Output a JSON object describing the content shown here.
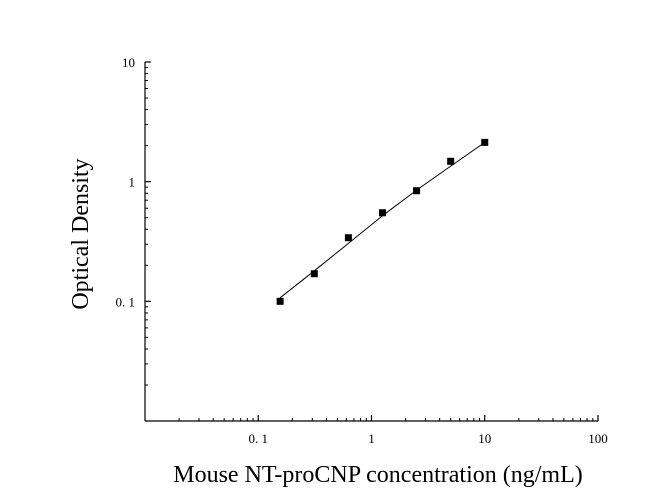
{
  "chart_data": {
    "type": "scatter",
    "title": "",
    "xlabel": "Mouse NT-proCNP concentration (ng/mL)",
    "ylabel": "Optical Density",
    "x_scale": "log",
    "y_scale": "log",
    "xlim": [
      0.01,
      100
    ],
    "ylim": [
      0.01,
      10
    ],
    "x_ticks": [
      {
        "value": 0.1,
        "label": "0. 1"
      },
      {
        "value": 1,
        "label": "1"
      },
      {
        "value": 10,
        "label": "10"
      },
      {
        "value": 100,
        "label": "100"
      }
    ],
    "y_ticks": [
      {
        "value": 0.1,
        "label": "0. 1"
      },
      {
        "value": 1,
        "label": "1"
      },
      {
        "value": 10,
        "label": "10"
      }
    ],
    "grid": false,
    "legend": "none",
    "points": [
      {
        "x": 0.156,
        "y": 0.1
      },
      {
        "x": 0.3125,
        "y": 0.17
      },
      {
        "x": 0.625,
        "y": 0.34
      },
      {
        "x": 1.25,
        "y": 0.55
      },
      {
        "x": 2.5,
        "y": 0.84
      },
      {
        "x": 5,
        "y": 1.48
      },
      {
        "x": 10,
        "y": 2.13
      }
    ],
    "fit_curve": [
      {
        "x": 0.156,
        "y": 0.107
      },
      {
        "x": 0.3125,
        "y": 0.18
      },
      {
        "x": 0.625,
        "y": 0.305
      },
      {
        "x": 1.25,
        "y": 0.52
      },
      {
        "x": 2.5,
        "y": 0.85
      },
      {
        "x": 5,
        "y": 1.35
      },
      {
        "x": 10,
        "y": 2.13
      }
    ],
    "colors": {
      "marker": "#000000",
      "line": "#000000",
      "axis": "#000000"
    }
  }
}
